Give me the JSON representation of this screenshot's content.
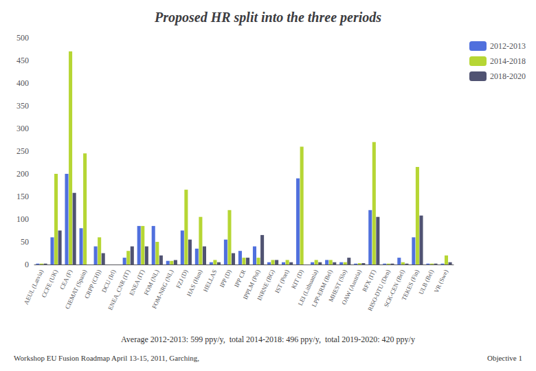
{
  "chart_data": {
    "type": "bar",
    "title": "Proposed HR split into the three periods",
    "categories": [
      "AEUL (Latvia)",
      "CCFE (UK)",
      "CEA (F)",
      "CIEMAT (Spain)",
      "CRPP (CH))",
      "DCU (Irl)",
      "ENEA_CNR (IT)",
      "ENEA (IT)",
      "FOM (NL)",
      "FOM-NRG (NL)",
      "FZJ (D)",
      "HAS (Hun)",
      "HELLAS",
      "IPP (D)",
      "IPP CR",
      "IPPLM (Pol)",
      "INRNE (BG)",
      "IST (Port)",
      "KIT (D)",
      "LEI (Lithuania)",
      "LPP-ERM (Bel)",
      "MHEST (Slo)",
      "OAW (Austria)",
      "RFX (IT)",
      "RISO-DTU (Den)",
      "SCK-CEN (Bel)",
      "TEKES (Fin)",
      "ULB (Bel)",
      "VR (Swe)"
    ],
    "series": [
      {
        "name": "2012-2013",
        "values": [
          2,
          60,
          200,
          80,
          40,
          0,
          15,
          85,
          85,
          8,
          75,
          35,
          5,
          55,
          30,
          40,
          5,
          5,
          190,
          5,
          10,
          5,
          2,
          120,
          2,
          15,
          60,
          2,
          2
        ]
      },
      {
        "name": "2014-2018",
        "values": [
          2,
          200,
          470,
          245,
          60,
          0,
          30,
          85,
          50,
          8,
          165,
          105,
          10,
          120,
          15,
          15,
          10,
          10,
          260,
          10,
          10,
          5,
          3,
          270,
          2,
          5,
          215,
          2,
          20
        ]
      },
      {
        "name": "2018-2020",
        "values": [
          2,
          75,
          158,
          0,
          25,
          0,
          40,
          40,
          20,
          10,
          55,
          40,
          5,
          25,
          15,
          65,
          10,
          5,
          0,
          5,
          5,
          15,
          3,
          105,
          2,
          2,
          108,
          2,
          5
        ]
      }
    ],
    "ylim": [
      0,
      500
    ],
    "yticks": [
      0,
      50,
      100,
      150,
      200,
      250,
      300,
      350,
      400,
      450,
      500
    ],
    "grid": false,
    "legend": "right",
    "annotations": [
      "Average 2012-2013: 599 ppy/y,  total 2014-2018: 496 ppy/y,  total 2019-2020: 420 ppy/y",
      "Workshop EU Fusion Roadmap April 13-15, 2011, Garching,",
      "Objective 1"
    ]
  }
}
